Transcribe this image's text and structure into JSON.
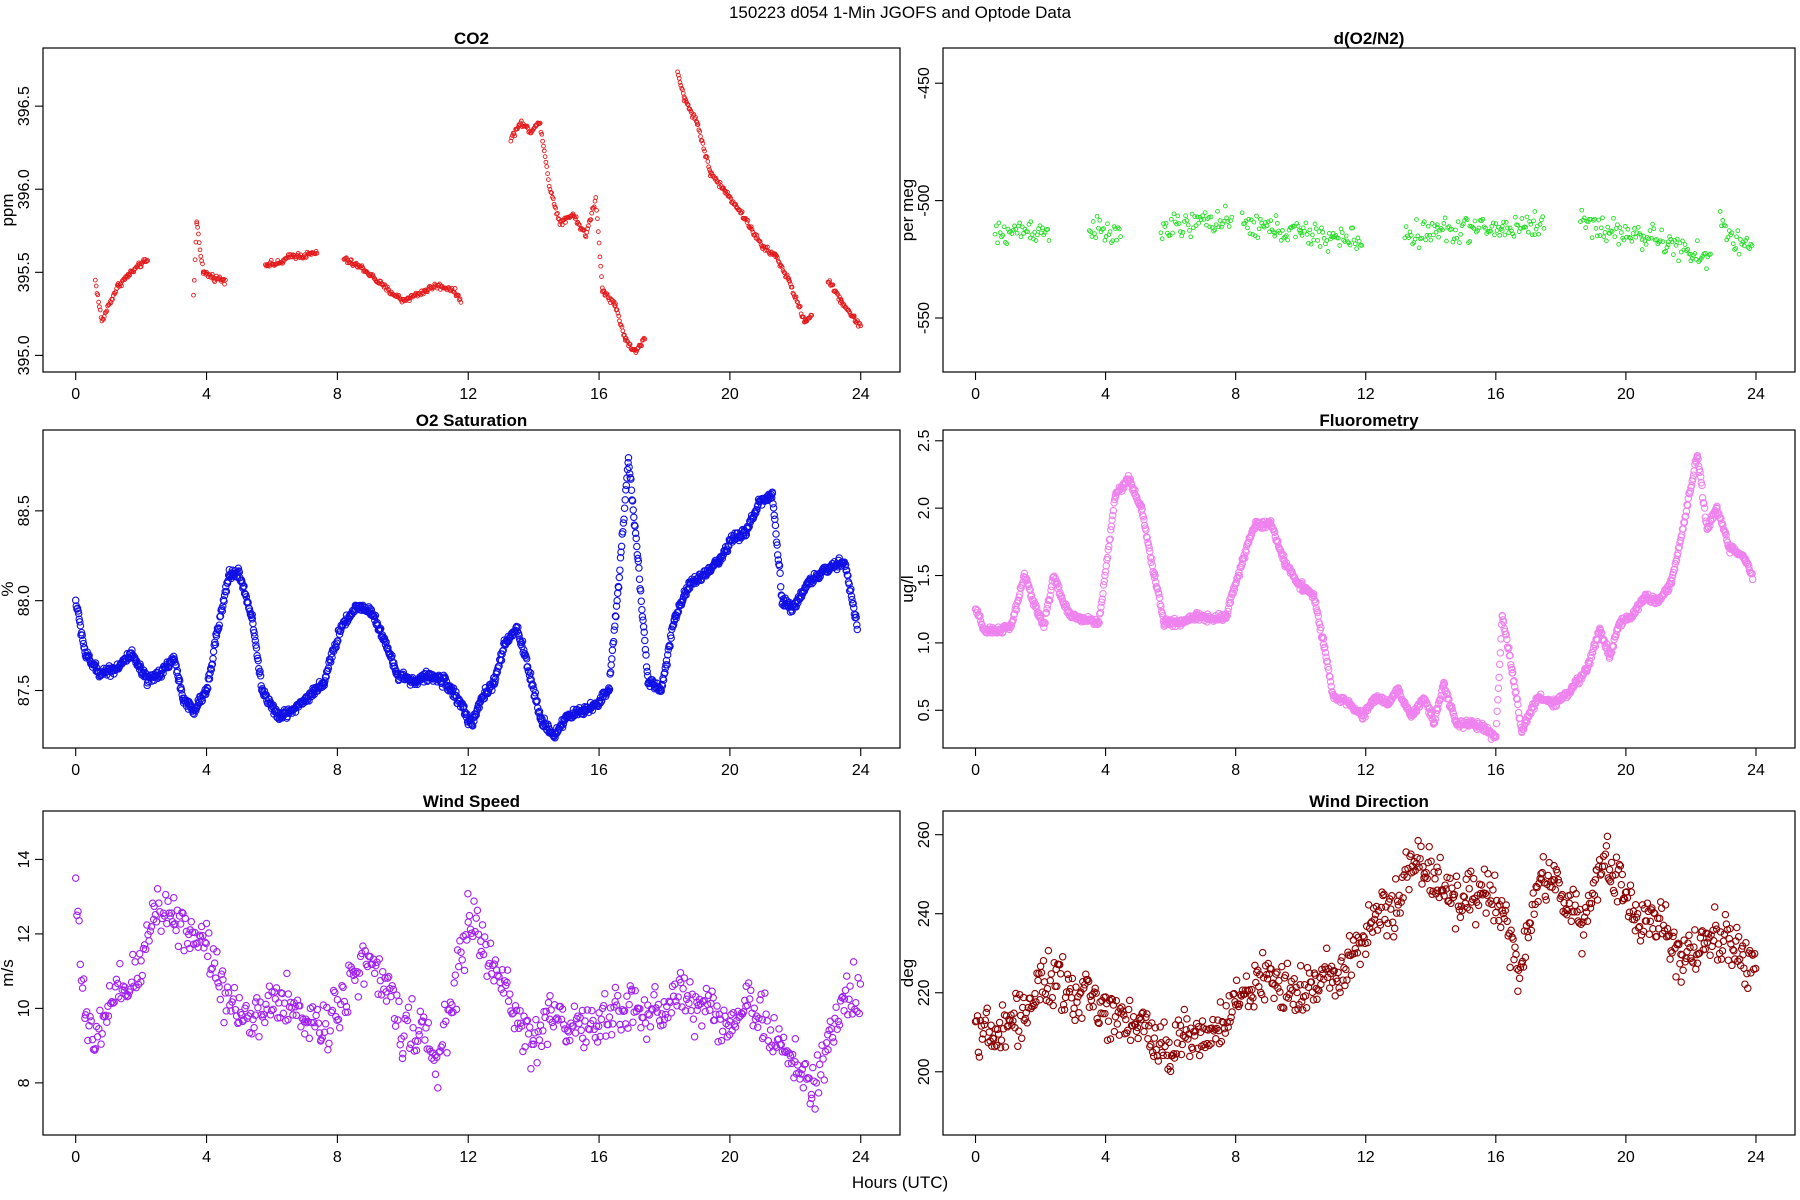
{
  "figure": {
    "title": "150223   d054   1-Min  JGOFS and Optode Data",
    "xlabel": "Hours (UTC)"
  },
  "chart_data": [
    {
      "type": "scatter",
      "title": "CO2",
      "ylabel": "ppm",
      "color": "#e31a1c",
      "xlim": [
        -1,
        25.2
      ],
      "ylim": [
        394.9,
        396.85
      ],
      "xticks": [
        0,
        4,
        8,
        12,
        16,
        20,
        24
      ],
      "yticks": [
        395.0,
        395.5,
        396.0,
        396.5
      ],
      "ytick_labels": [
        "395.0",
        "395.5",
        "396.0",
        "396.5"
      ],
      "anchors": [
        [
          0.6,
          395.45
        ],
        [
          0.8,
          395.2
        ],
        [
          1.0,
          395.3
        ],
        [
          1.3,
          395.42
        ],
        [
          1.6,
          395.48
        ],
        [
          2.0,
          395.55
        ],
        [
          2.2,
          395.57
        ],
        null,
        [
          3.6,
          395.35
        ],
        [
          3.7,
          395.8
        ],
        [
          3.9,
          395.5
        ],
        [
          4.2,
          395.47
        ],
        [
          4.6,
          395.45
        ],
        null,
        [
          5.8,
          395.55
        ],
        [
          6.2,
          395.55
        ],
        [
          6.6,
          395.6
        ],
        [
          7.0,
          395.6
        ],
        [
          7.4,
          395.62
        ],
        null,
        [
          8.2,
          395.58
        ],
        [
          8.8,
          395.52
        ],
        [
          9.5,
          395.4
        ],
        [
          10.0,
          395.33
        ],
        [
          10.6,
          395.38
        ],
        [
          11.0,
          395.42
        ],
        [
          11.5,
          395.4
        ],
        [
          11.8,
          395.33
        ],
        null,
        [
          13.3,
          396.3
        ],
        [
          13.6,
          396.4
        ],
        [
          13.9,
          396.35
        ],
        [
          14.2,
          396.4
        ],
        [
          14.5,
          396.0
        ],
        [
          14.8,
          395.8
        ],
        [
          15.2,
          395.85
        ],
        [
          15.6,
          395.72
        ],
        [
          15.9,
          395.95
        ],
        [
          16.1,
          395.4
        ],
        [
          16.5,
          395.3
        ],
        [
          16.8,
          395.1
        ],
        [
          17.1,
          395.02
        ],
        [
          17.4,
          395.1
        ],
        null,
        [
          18.4,
          396.7
        ],
        [
          18.6,
          396.55
        ],
        [
          19.0,
          396.4
        ],
        [
          19.4,
          396.1
        ],
        [
          19.8,
          396.0
        ],
        [
          20.2,
          395.9
        ],
        [
          20.6,
          395.78
        ],
        [
          21.0,
          395.65
        ],
        [
          21.4,
          395.6
        ],
        [
          21.8,
          395.45
        ],
        [
          22.3,
          395.2
        ],
        [
          22.5,
          395.25
        ],
        null,
        [
          23.0,
          395.45
        ],
        [
          23.4,
          395.33
        ],
        [
          23.8,
          395.22
        ],
        [
          24.0,
          395.18
        ]
      ],
      "jitter": 0.02,
      "x_step": 0.025
    },
    {
      "type": "scatter",
      "title": "d(O2/N2)",
      "ylabel": "per meg",
      "color": "#22dd22",
      "xlim": [
        -1,
        25.2
      ],
      "ylim": [
        -573,
        -435
      ],
      "xticks": [
        0,
        4,
        8,
        12,
        16,
        20,
        24
      ],
      "yticks": [
        -450,
        -500,
        -550
      ],
      "ytick_labels": [
        "-450",
        "-500",
        "-550"
      ],
      "anchors": [
        [
          0.6,
          -515
        ],
        [
          1.2,
          -513
        ],
        [
          1.7,
          -512
        ],
        [
          2.3,
          -514
        ],
        null,
        [
          3.5,
          -510
        ],
        [
          3.9,
          -514
        ],
        [
          4.5,
          -515
        ],
        null,
        [
          5.7,
          -512
        ],
        [
          6.5,
          -511
        ],
        [
          7.2,
          -508
        ],
        [
          7.9,
          -510
        ],
        null,
        [
          8.2,
          -510
        ],
        [
          9.2,
          -512
        ],
        [
          10.0,
          -514
        ],
        [
          11.0,
          -516
        ],
        [
          11.9,
          -517
        ],
        null,
        [
          13.2,
          -515
        ],
        [
          14.2,
          -513
        ],
        [
          15.2,
          -512
        ],
        [
          16.2,
          -512
        ],
        [
          17.2,
          -510
        ],
        [
          17.5,
          -510
        ],
        null,
        [
          18.6,
          -508
        ],
        [
          19.5,
          -513
        ],
        [
          20.5,
          -515
        ],
        [
          21.3,
          -518
        ],
        [
          22.0,
          -523
        ],
        [
          22.6,
          -525
        ],
        null,
        [
          22.9,
          -508
        ],
        [
          23.4,
          -518
        ],
        [
          23.9,
          -520
        ]
      ],
      "jitter": 6,
      "x_step": 0.04
    },
    {
      "type": "scatter",
      "title": "O2 Saturation",
      "ylabel": "%",
      "color": "#1010e6",
      "xlim": [
        -1,
        25.2
      ],
      "ylim": [
        87.18,
        88.95
      ],
      "xticks": [
        0,
        4,
        8,
        12,
        16,
        20,
        24
      ],
      "yticks": [
        87.5,
        88.0,
        88.5
      ],
      "ytick_labels": [
        "87.5",
        "88.0",
        "88.5"
      ],
      "anchors": [
        [
          0.0,
          88.0
        ],
        [
          0.3,
          87.7
        ],
        [
          0.7,
          87.6
        ],
        [
          1.2,
          87.62
        ],
        [
          1.7,
          87.7
        ],
        [
          2.2,
          87.55
        ],
        [
          2.6,
          87.6
        ],
        [
          3.0,
          87.68
        ],
        [
          3.3,
          87.45
        ],
        [
          3.6,
          87.38
        ],
        [
          4.0,
          87.5
        ],
        [
          4.3,
          87.8
        ],
        [
          4.7,
          88.15
        ],
        [
          5.0,
          88.15
        ],
        [
          5.4,
          87.9
        ],
        [
          5.7,
          87.5
        ],
        [
          6.2,
          87.35
        ],
        [
          6.7,
          87.4
        ],
        [
          7.2,
          87.48
        ],
        [
          7.6,
          87.55
        ],
        [
          8.1,
          87.85
        ],
        [
          8.6,
          87.97
        ],
        [
          9.0,
          87.95
        ],
        [
          9.4,
          87.8
        ],
        [
          9.8,
          87.6
        ],
        [
          10.3,
          87.55
        ],
        [
          10.8,
          87.58
        ],
        [
          11.3,
          87.55
        ],
        [
          11.8,
          87.42
        ],
        [
          12.1,
          87.3
        ],
        [
          12.4,
          87.45
        ],
        [
          12.8,
          87.55
        ],
        [
          13.1,
          87.75
        ],
        [
          13.5,
          87.85
        ],
        [
          13.8,
          87.65
        ],
        [
          14.2,
          87.35
        ],
        [
          14.6,
          87.25
        ],
        [
          15.0,
          87.35
        ],
        [
          15.4,
          87.38
        ],
        [
          15.9,
          87.42
        ],
        [
          16.3,
          87.5
        ],
        [
          16.6,
          88.1
        ],
        [
          16.9,
          88.8
        ],
        [
          17.2,
          88.2
        ],
        [
          17.5,
          87.55
        ],
        [
          17.9,
          87.5
        ],
        [
          18.3,
          87.9
        ],
        [
          18.8,
          88.1
        ],
        [
          19.3,
          88.15
        ],
        [
          19.8,
          88.25
        ],
        [
          20.1,
          88.35
        ],
        [
          20.5,
          88.38
        ],
        [
          20.9,
          88.55
        ],
        [
          21.3,
          88.58
        ],
        [
          21.6,
          88.0
        ],
        [
          21.9,
          87.95
        ],
        [
          22.4,
          88.1
        ],
        [
          23.0,
          88.18
        ],
        [
          23.5,
          88.22
        ],
        [
          23.9,
          87.85
        ]
      ],
      "jitter": 0.03,
      "x_step": 0.018
    },
    {
      "type": "scatter",
      "title": "Fluorometry",
      "ylabel": "ug/l",
      "color": "#ee82ee",
      "xlim": [
        -1,
        25.2
      ],
      "ylim": [
        0.22,
        2.58
      ],
      "xticks": [
        0,
        4,
        8,
        12,
        16,
        20,
        24
      ],
      "yticks": [
        0.5,
        1.0,
        1.5,
        2.0,
        2.5
      ],
      "ytick_labels": [
        "0.5",
        "1.0",
        "1.5",
        "2.0",
        "2.5"
      ],
      "anchors": [
        [
          0.0,
          1.25
        ],
        [
          0.3,
          1.08
        ],
        [
          0.8,
          1.1
        ],
        [
          1.1,
          1.12
        ],
        [
          1.5,
          1.5
        ],
        [
          1.8,
          1.3
        ],
        [
          2.1,
          1.12
        ],
        [
          2.4,
          1.5
        ],
        [
          2.7,
          1.3
        ],
        [
          2.9,
          1.2
        ],
        [
          3.3,
          1.18
        ],
        [
          3.8,
          1.15
        ],
        [
          4.3,
          2.1
        ],
        [
          4.7,
          2.22
        ],
        [
          5.1,
          2.0
        ],
        [
          5.5,
          1.5
        ],
        [
          5.8,
          1.15
        ],
        [
          6.3,
          1.15
        ],
        [
          6.8,
          1.2
        ],
        [
          7.3,
          1.18
        ],
        [
          7.7,
          1.2
        ],
        [
          8.2,
          1.6
        ],
        [
          8.6,
          1.88
        ],
        [
          9.1,
          1.88
        ],
        [
          9.5,
          1.6
        ],
        [
          9.9,
          1.45
        ],
        [
          10.4,
          1.35
        ],
        [
          10.7,
          1.0
        ],
        [
          11.0,
          0.6
        ],
        [
          11.5,
          0.55
        ],
        [
          11.9,
          0.45
        ],
        [
          12.3,
          0.6
        ],
        [
          12.7,
          0.55
        ],
        [
          13.0,
          0.65
        ],
        [
          13.4,
          0.45
        ],
        [
          13.8,
          0.6
        ],
        [
          14.1,
          0.4
        ],
        [
          14.4,
          0.7
        ],
        [
          14.8,
          0.4
        ],
        [
          15.3,
          0.4
        ],
        [
          15.7,
          0.35
        ],
        [
          16.0,
          0.3
        ],
        [
          16.2,
          1.2
        ],
        [
          16.5,
          0.8
        ],
        [
          16.8,
          0.35
        ],
        [
          17.3,
          0.6
        ],
        [
          17.8,
          0.55
        ],
        [
          18.3,
          0.65
        ],
        [
          18.8,
          0.8
        ],
        [
          19.2,
          1.1
        ],
        [
          19.5,
          0.9
        ],
        [
          19.8,
          1.15
        ],
        [
          20.2,
          1.2
        ],
        [
          20.6,
          1.35
        ],
        [
          21.0,
          1.3
        ],
        [
          21.4,
          1.45
        ],
        [
          21.8,
          1.9
        ],
        [
          22.2,
          2.4
        ],
        [
          22.5,
          1.85
        ],
        [
          22.8,
          2.0
        ],
        [
          23.2,
          1.7
        ],
        [
          23.6,
          1.65
        ],
        [
          23.9,
          1.5
        ]
      ],
      "jitter": 0.03,
      "x_step": 0.02
    },
    {
      "type": "scatter",
      "title": "Wind Speed",
      "ylabel": "m/s",
      "color": "#a020f0",
      "xlim": [
        -1,
        25.2
      ],
      "ylim": [
        6.6,
        15.3
      ],
      "xticks": [
        0,
        4,
        8,
        12,
        16,
        20,
        24
      ],
      "yticks": [
        8,
        10,
        12,
        14
      ],
      "ytick_labels": [
        "8",
        "10",
        "12",
        "14"
      ],
      "anchors": [
        [
          0.0,
          13.5
        ],
        [
          0.3,
          9.5
        ],
        [
          0.6,
          9.0
        ],
        [
          1.0,
          10.0
        ],
        [
          1.5,
          10.5
        ],
        [
          2.0,
          11.0
        ],
        [
          2.4,
          12.8
        ],
        [
          3.0,
          12.5
        ],
        [
          3.5,
          12.0
        ],
        [
          4.0,
          11.8
        ],
        [
          4.5,
          10.5
        ],
        [
          5.0,
          10.0
        ],
        [
          5.5,
          9.5
        ],
        [
          6.0,
          10.2
        ],
        [
          6.5,
          10.0
        ],
        [
          7.0,
          9.8
        ],
        [
          7.5,
          9.5
        ],
        [
          8.0,
          10.0
        ],
        [
          8.5,
          11.0
        ],
        [
          9.0,
          11.2
        ],
        [
          9.5,
          10.5
        ],
        [
          10.0,
          9.5
        ],
        [
          10.5,
          9.5
        ],
        [
          11.0,
          8.5
        ],
        [
          11.5,
          10.0
        ],
        [
          12.0,
          12.5
        ],
        [
          12.4,
          11.8
        ],
        [
          12.8,
          11.0
        ],
        [
          13.2,
          10.5
        ],
        [
          13.6,
          9.5
        ],
        [
          14.0,
          9.0
        ],
        [
          14.5,
          10.0
        ],
        [
          15.0,
          9.5
        ],
        [
          15.5,
          9.5
        ],
        [
          16.0,
          9.5
        ],
        [
          16.5,
          10.0
        ],
        [
          17.0,
          10.0
        ],
        [
          17.5,
          9.8
        ],
        [
          18.0,
          10.0
        ],
        [
          18.5,
          10.5
        ],
        [
          19.0,
          10.0
        ],
        [
          19.5,
          10.0
        ],
        [
          20.0,
          9.5
        ],
        [
          20.5,
          10.2
        ],
        [
          21.0,
          9.8
        ],
        [
          21.5,
          9.0
        ],
        [
          22.0,
          8.5
        ],
        [
          22.5,
          7.8
        ],
        [
          23.0,
          9.0
        ],
        [
          23.5,
          10.2
        ],
        [
          24.0,
          10.6
        ]
      ],
      "jitter": 0.75,
      "x_step": 0.035
    },
    {
      "type": "scatter",
      "title": "Wind Direction",
      "ylabel": "deg",
      "color": "#8b0000",
      "xlim": [
        -1,
        25.2
      ],
      "ylim": [
        184,
        266
      ],
      "xticks": [
        0,
        4,
        8,
        12,
        16,
        20,
        24
      ],
      "yticks": [
        200,
        220,
        240,
        260
      ],
      "ytick_labels": [
        "200",
        "220",
        "240",
        "260"
      ],
      "anchors": [
        [
          0.0,
          213
        ],
        [
          0.5,
          208
        ],
        [
          1.0,
          212
        ],
        [
          1.5,
          215
        ],
        [
          2.0,
          222
        ],
        [
          2.5,
          223
        ],
        [
          3.0,
          218
        ],
        [
          3.5,
          220
        ],
        [
          4.0,
          215
        ],
        [
          4.5,
          215
        ],
        [
          5.0,
          212
        ],
        [
          5.5,
          208
        ],
        [
          6.0,
          205
        ],
        [
          6.5,
          212
        ],
        [
          7.0,
          208
        ],
        [
          7.5,
          210
        ],
        [
          8.0,
          218
        ],
        [
          8.5,
          220
        ],
        [
          9.0,
          225
        ],
        [
          9.5,
          222
        ],
        [
          10.0,
          220
        ],
        [
          10.5,
          222
        ],
        [
          11.0,
          225
        ],
        [
          11.5,
          230
        ],
        [
          12.0,
          235
        ],
        [
          12.5,
          240
        ],
        [
          13.0,
          242
        ],
        [
          13.4,
          255
        ],
        [
          13.8,
          252
        ],
        [
          14.2,
          248
        ],
        [
          14.7,
          245
        ],
        [
          15.2,
          243
        ],
        [
          15.7,
          245
        ],
        [
          16.2,
          240
        ],
        [
          16.7,
          225
        ],
        [
          17.0,
          235
        ],
        [
          17.4,
          250
        ],
        [
          17.8,
          248
        ],
        [
          18.2,
          242
        ],
        [
          18.7,
          238
        ],
        [
          19.1,
          250
        ],
        [
          19.5,
          253
        ],
        [
          19.9,
          245
        ],
        [
          20.3,
          238
        ],
        [
          20.8,
          240
        ],
        [
          21.3,
          235
        ],
        [
          21.7,
          228
        ],
        [
          22.2,
          230
        ],
        [
          22.7,
          235
        ],
        [
          23.2,
          232
        ],
        [
          23.6,
          230
        ],
        [
          24.0,
          225
        ]
      ],
      "jitter": 7,
      "x_step": 0.03
    }
  ]
}
